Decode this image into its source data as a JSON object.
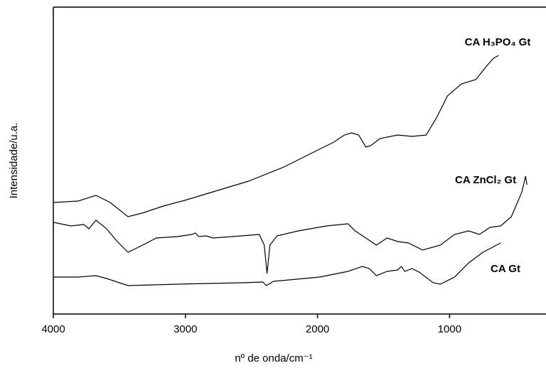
{
  "chart_data": {
    "type": "line",
    "x_label": "nº de onda/cm⁻¹",
    "y_label": "Intensidade/u.a.",
    "xlim": [
      4000,
      270
    ],
    "xticks": [
      4000,
      3000,
      2000,
      1000
    ],
    "ylim": [
      0,
      432
    ],
    "series": [
      {
        "name": "CA H₃PO₄ Gt",
        "color": "#000000",
        "x": [
          4000,
          3812,
          3677,
          3570,
          3435,
          3328,
          3167,
          3005,
          2790,
          2522,
          2253,
          2038,
          1876,
          1796,
          1742,
          1688,
          1634,
          1597,
          1527,
          1392,
          1285,
          1177,
          1097,
          1016,
          909,
          801,
          720,
          667,
          629
        ],
        "values": [
          157,
          159,
          167,
          157,
          137,
          142,
          152,
          160,
          172,
          187,
          207,
          227,
          242,
          252,
          255,
          252,
          235,
          237,
          247,
          252,
          250,
          252,
          277,
          307,
          324,
          330,
          349,
          360,
          364
        ]
      },
      {
        "name": "CA ZnCl₂ Gt",
        "color": "#000000",
        "x": [
          4000,
          3866,
          3769,
          3731,
          3677,
          3597,
          3516,
          3435,
          3355,
          3220,
          3059,
          2952,
          2925,
          2898,
          2844,
          2790,
          2575,
          2441,
          2403,
          2382,
          2360,
          2306,
          2145,
          1930,
          1769,
          1715,
          1634,
          1554,
          1473,
          1392,
          1312,
          1204,
          1070,
          962,
          855,
          774,
          694,
          613,
          532,
          452,
          425,
          414
        ],
        "values": [
          129,
          124,
          126,
          120,
          132,
          120,
          102,
          87,
          94,
          107,
          109,
          112,
          114,
          109,
          110,
          107,
          110,
          112,
          97,
          57,
          97,
          110,
          117,
          124,
          127,
          117,
          107,
          97,
          107,
          102,
          100,
          90,
          97,
          112,
          117,
          112,
          122,
          124,
          137,
          172,
          194,
          182
        ]
      },
      {
        "name": "CA Gt",
        "color": "#000000",
        "x": [
          4000,
          3812,
          3677,
          3597,
          3435,
          3059,
          2575,
          2414,
          2387,
          2333,
          1984,
          1769,
          1661,
          1608,
          1554,
          1473,
          1392,
          1366,
          1339,
          1285,
          1231,
          1124,
          1070,
          962,
          855,
          747,
          613
        ],
        "values": [
          52,
          52,
          54,
          50,
          40,
          42,
          44,
          45,
          40,
          46,
          52,
          60,
          67,
          64,
          54,
          60,
          62,
          67,
          60,
          64,
          59,
          44,
          42,
          52,
          72,
          87,
          100
        ]
      }
    ]
  }
}
